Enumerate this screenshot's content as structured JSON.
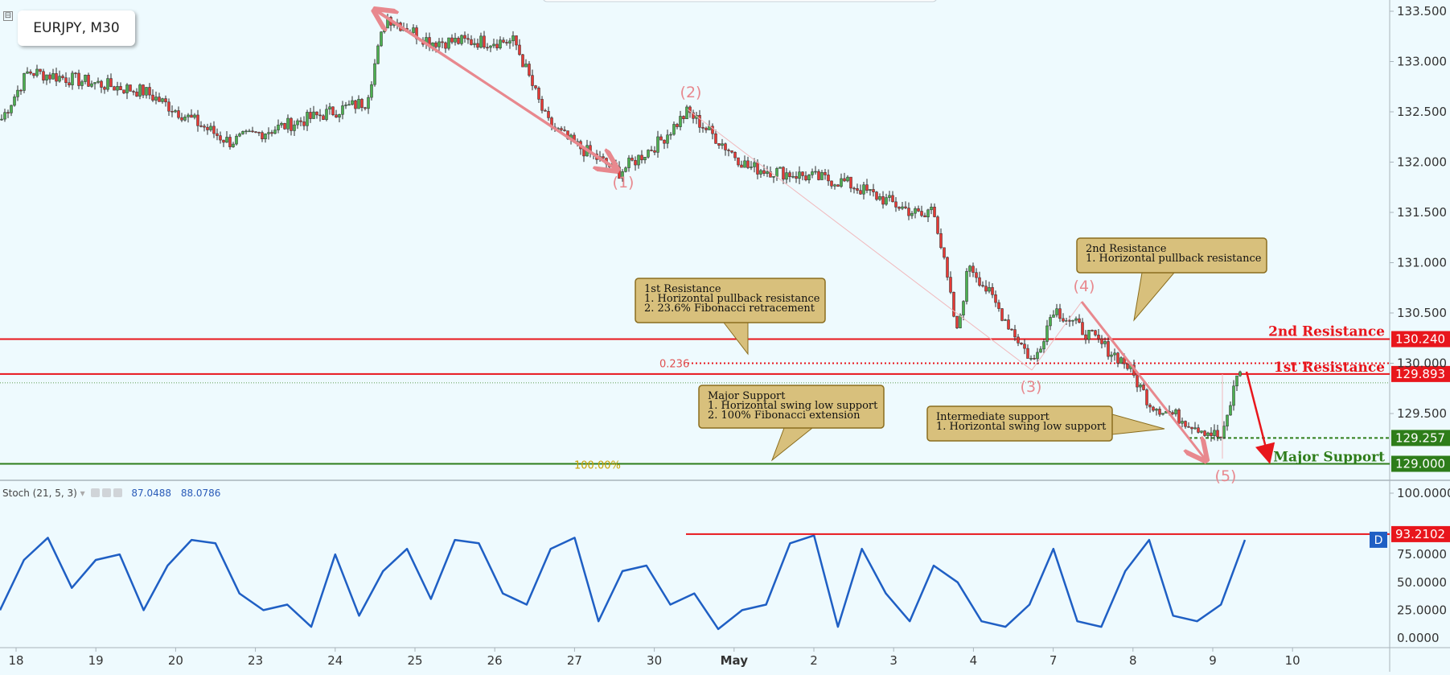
{
  "symbol": "EURJPY, M30",
  "collapse_glyph": "⊟",
  "main_price_scale": [
    "133.500",
    "133.000",
    "132.500",
    "132.000",
    "131.500",
    "131.000",
    "130.500",
    "130.000",
    "129.500",
    "100.0000"
  ],
  "x_axis_labels": [
    "18",
    "19",
    "20",
    "23",
    "24",
    "25",
    "26",
    "27",
    "30",
    "May",
    "2",
    "3",
    "4",
    "7",
    "8",
    "9",
    "10"
  ],
  "levels": [
    {
      "name": "2nd Resistance",
      "value": "130.240",
      "color": "#e8161c"
    },
    {
      "name": "1st Resistance",
      "value": "129.893",
      "color": "#e8161c"
    },
    {
      "name": "",
      "value": "129.257",
      "color": "#2e7d1a"
    },
    {
      "name": "Major Support",
      "value": "129.000",
      "color": "#2e7d1a"
    }
  ],
  "fib_labels": {
    "fib236": "0.236",
    "fib100": "100.00%"
  },
  "wave_labels": [
    "(1)",
    "(2)",
    "(3)",
    "(4)",
    "(5)"
  ],
  "callouts": {
    "res1": [
      "1st Resistance",
      "1. Horizontal pullback resistance",
      "2. 23.6% Fibonacci retracement"
    ],
    "res2": [
      "2nd Resistance",
      "1. Horizontal pullback resistance"
    ],
    "major": [
      "Major Support",
      "1. Horizontal swing low support",
      "2. 100% Fibonacci extension"
    ],
    "inter": [
      "Intermediate support",
      "1. Horizontal swing low support"
    ]
  },
  "stoch": {
    "title": "Stoch (21, 5, 3)",
    "dropdown_glyph": "▾",
    "value_k": "87.0488",
    "value_d": "88.0786",
    "scale": [
      "75.0000",
      "50.0000",
      "25.0000",
      "0.0000"
    ],
    "marker_value": "93.2102",
    "marker_badge": "D"
  },
  "colors": {
    "background": "#eefafe",
    "up_candle": "#4caf50",
    "down_candle": "#e53935",
    "resistance": "#e8161c",
    "support": "#2e7d1a",
    "stoch_line": "#1f5fc4",
    "wave": "#e8888e",
    "callout_fill": "#d8c07c"
  },
  "chart_data": [
    {
      "type": "line",
      "title": "EURJPY, M30",
      "xlabel": "",
      "ylabel": "",
      "x": [
        "18",
        "19",
        "20",
        "23",
        "24",
        "24",
        "25",
        "26",
        "26",
        "27",
        "27",
        "30",
        "30",
        "May",
        "2",
        "3",
        "3",
        "4",
        "4",
        "7",
        "7",
        "8",
        "8",
        "9",
        "9"
      ],
      "series": [
        {
          "name": "",
          "values": [
            132.4,
            132.9,
            132.7,
            132.2,
            132.6,
            133.45,
            133.2,
            133.2,
            132.4,
            132.2,
            131.9,
            132.2,
            132.5,
            131.95,
            131.8,
            131.45,
            131.6,
            130.3,
            131.0,
            130.0,
            130.55,
            130.0,
            129.6,
            129.25,
            129.95
          ]
        }
      ],
      "ylim": [
        128.8,
        133.6
      ],
      "levels": [
        130.24,
        130.0,
        129.893,
        129.257,
        129.0
      ],
      "fibonacci": {
        "0.236": 130.0,
        "100.00%": 129.0
      },
      "waves": [
        {
          "label": "(1)",
          "x": "27",
          "y": 131.9
        },
        {
          "label": "(2)",
          "x": "30",
          "y": 132.5
        },
        {
          "label": "(3)",
          "x": "4",
          "y": 130.0
        },
        {
          "label": "(4)",
          "x": "7",
          "y": 130.55
        },
        {
          "label": "(5)",
          "x": "9",
          "y": 129.0
        }
      ],
      "grid": false,
      "legend": "none"
    },
    {
      "type": "line",
      "title": "Stoch (21, 5, 3)",
      "ylim": [
        0,
        100
      ],
      "series": [
        {
          "name": "Stoch (21, 5, 3)",
          "values": [
            25,
            70,
            90,
            45,
            70,
            75,
            25,
            65,
            88,
            85,
            40,
            25,
            30,
            10,
            75,
            20,
            60,
            80,
            35,
            88,
            85,
            40,
            30,
            80,
            90,
            15,
            60,
            65,
            30,
            40,
            8,
            25,
            30,
            85,
            92,
            10,
            80,
            40,
            15,
            65,
            50,
            15,
            10,
            30,
            80,
            15,
            10,
            60,
            88,
            20,
            15,
            30,
            88
          ]
        }
      ],
      "levels": [
        93.2102
      ],
      "legend": "none"
    }
  ]
}
